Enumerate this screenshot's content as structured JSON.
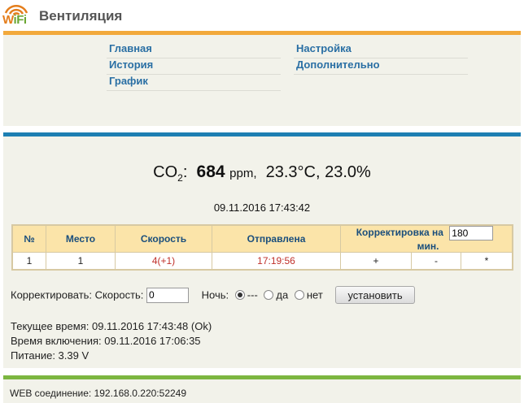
{
  "header": {
    "logo_w": "W",
    "logo_rest": "iFi",
    "title": "Вентиляция"
  },
  "menu": {
    "left": [
      "Главная",
      "История",
      "График"
    ],
    "right": [
      "Настройка",
      "Дополнительно"
    ]
  },
  "readout": {
    "co2_label": "CO",
    "co2_sub": "2",
    "co2_colon": ":",
    "co2_value": "684",
    "co2_unit": "ppm,",
    "temp_hum": "23.3°C, 23.0%",
    "datetime": "09.11.2016 17:43:42"
  },
  "table": {
    "headers": {
      "num": "№",
      "place": "Место",
      "speed": "Скорость",
      "sent": "Отправлена",
      "corr": "Корректировка на",
      "corr_value": "180",
      "min": "мин."
    },
    "row": {
      "num": "1",
      "place": "1",
      "speed": "4(+1)",
      "sent": "17:19:56",
      "plus": "+",
      "minus": "-",
      "star": "*"
    }
  },
  "control": {
    "label": "Корректировать: Скорость:",
    "speed_value": "0",
    "night_label": "Ночь:",
    "opt_none": "---",
    "opt_yes": "да",
    "opt_no": "нет",
    "button": "установить"
  },
  "status": {
    "current_time": "Текущее время: 09.11.2016 17:43:48 (Ok)",
    "power_on_time": "Время включения: 09.11.2016 17:06:35",
    "power": "Питание: 3.39 V"
  },
  "footer": {
    "web": "WEB соединение: 192.168.0.220:52249"
  },
  "colors": {
    "menu_bar": "#f2a93b",
    "main_bar": "#1d7fb2",
    "footer_bar": "#7cb640",
    "table_header": "#fbe4a9"
  }
}
